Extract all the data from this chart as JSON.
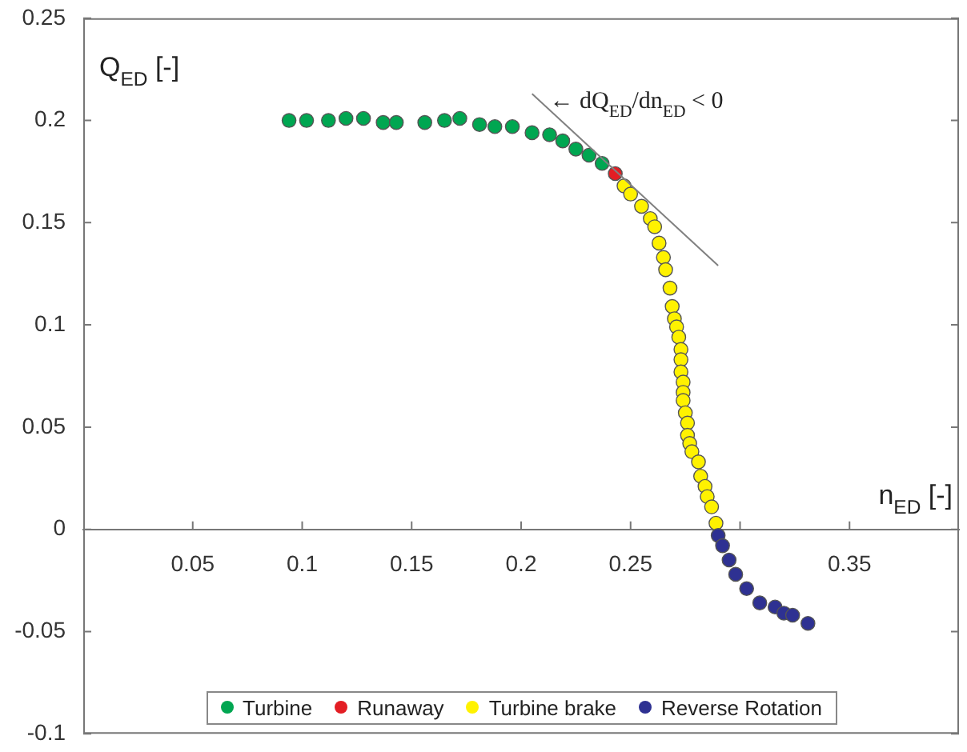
{
  "chart_data": {
    "type": "scatter",
    "xlabel": "n$_{ED}$ [-]",
    "ylabel": "Q$_{ED}$ [-]",
    "xlim": [
      0,
      0.4
    ],
    "xticks": [
      0.05,
      0.1,
      0.15,
      0.2,
      0.25,
      {
        "value": 0.3,
        "label": null
      },
      0.35
    ],
    "ylim": [
      -0.1,
      0.25
    ],
    "yticks": [
      -0.1,
      -0.05,
      0,
      0.05,
      0.1,
      0.15,
      0.2,
      0.25
    ],
    "legend": "bottom",
    "marker": "circle",
    "annotations": [
      {
        "text": "← dQ$_{ED}$/dn$_{ED}$ < 0",
        "x": 0.213,
        "y": 0.21
      }
    ],
    "series": [
      {
        "name": "Turbine",
        "color": "#00a651",
        "x": [
          0.094,
          0.102,
          0.112,
          0.12,
          0.128,
          0.137,
          0.143,
          0.156,
          0.165,
          0.172,
          0.181,
          0.188,
          0.196,
          0.205,
          0.213,
          0.219,
          0.225,
          0.231,
          0.237
        ],
        "values": [
          0.2,
          0.2,
          0.2,
          0.201,
          0.201,
          0.199,
          0.199,
          0.199,
          0.2,
          0.201,
          0.198,
          0.197,
          0.197,
          0.194,
          0.193,
          0.19,
          0.186,
          0.183,
          0.179
        ]
      },
      {
        "name": "Runaway",
        "color": "#e31e24",
        "x": [
          0.243
        ],
        "values": [
          0.174
        ]
      },
      {
        "name": "Turbine brake",
        "color": "#fff200",
        "x": [
          0.247,
          0.25,
          0.255,
          0.259,
          0.261,
          0.263,
          0.265,
          0.266,
          0.268,
          0.269,
          0.27,
          0.271,
          0.272,
          0.273,
          0.273,
          0.273,
          0.274,
          0.274,
          0.274,
          0.275,
          0.276,
          0.276,
          0.277,
          0.278,
          0.281,
          0.282,
          0.284,
          0.285,
          0.287,
          0.289
        ],
        "values": [
          0.168,
          0.164,
          0.158,
          0.152,
          0.148,
          0.14,
          0.133,
          0.127,
          0.118,
          0.109,
          0.103,
          0.099,
          0.094,
          0.088,
          0.083,
          0.077,
          0.072,
          0.067,
          0.063,
          0.057,
          0.052,
          0.046,
          0.042,
          0.038,
          0.033,
          0.026,
          0.021,
          0.016,
          0.011,
          0.003
        ]
      },
      {
        "name": "Reverse Rotation",
        "color": "#2e3192",
        "x": [
          0.29,
          0.292,
          0.295,
          0.298,
          0.303,
          0.309,
          0.316,
          0.32,
          0.324,
          0.331
        ],
        "values": [
          -0.003,
          -0.008,
          -0.015,
          -0.022,
          -0.029,
          -0.036,
          -0.038,
          -0.041,
          -0.042,
          -0.046
        ]
      },
      {
        "type": "line",
        "marker": "none",
        "color": "#808080",
        "x": [
          0.205,
          0.29
        ],
        "values": [
          0.213,
          0.129
        ]
      }
    ]
  }
}
